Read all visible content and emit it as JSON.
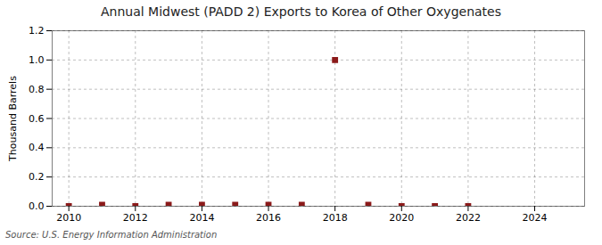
{
  "chart_data": {
    "type": "scatter",
    "title": "Annual Midwest (PADD 2) Exports to Korea of Other Oxygenates",
    "ylabel": "Thousand Barrels",
    "source": "Source: U.S. Energy Information Administration",
    "x": [
      2010,
      2011,
      2012,
      2013,
      2014,
      2015,
      2016,
      2017,
      2018,
      2019,
      2020,
      2021,
      2022
    ],
    "values": [
      0.0,
      0.01,
      0.0,
      0.01,
      0.01,
      0.01,
      0.01,
      0.01,
      1.0,
      0.01,
      0.0,
      0.0,
      0.0
    ],
    "color": "#8b1a1a",
    "marker": "square",
    "xlim": [
      2009.5,
      2025.5
    ],
    "ylim": [
      0.0,
      1.2
    ],
    "xticks": [
      2010,
      2012,
      2014,
      2016,
      2018,
      2020,
      2022,
      2024
    ],
    "yticks": [
      {
        "value": 0.0,
        "label": "0.0"
      },
      0.2,
      0.4,
      0.6,
      0.8,
      {
        "value": 1.0,
        "label": "1.0"
      },
      1.2
    ],
    "grid": true
  }
}
